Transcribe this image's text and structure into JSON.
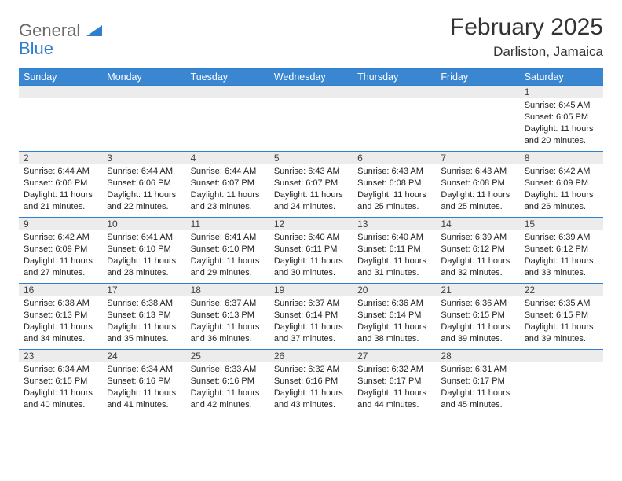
{
  "logo": {
    "word1": "General",
    "word2": "Blue"
  },
  "title": "February 2025",
  "location": "Darliston, Jamaica",
  "colors": {
    "header_bg": "#3a86d0",
    "border": "#2f7fcf",
    "daynum_bg": "#ececec",
    "logo_blue": "#2f7fcf",
    "logo_gray": "#6a6a6a"
  },
  "day_headers": [
    "Sunday",
    "Monday",
    "Tuesday",
    "Wednesday",
    "Thursday",
    "Friday",
    "Saturday"
  ],
  "weeks": [
    [
      null,
      null,
      null,
      null,
      null,
      null,
      {
        "d": "1",
        "sunrise": "6:45 AM",
        "sunset": "6:05 PM",
        "dayh": "11",
        "daym": "20"
      }
    ],
    [
      {
        "d": "2",
        "sunrise": "6:44 AM",
        "sunset": "6:06 PM",
        "dayh": "11",
        "daym": "21"
      },
      {
        "d": "3",
        "sunrise": "6:44 AM",
        "sunset": "6:06 PM",
        "dayh": "11",
        "daym": "22"
      },
      {
        "d": "4",
        "sunrise": "6:44 AM",
        "sunset": "6:07 PM",
        "dayh": "11",
        "daym": "23"
      },
      {
        "d": "5",
        "sunrise": "6:43 AM",
        "sunset": "6:07 PM",
        "dayh": "11",
        "daym": "24"
      },
      {
        "d": "6",
        "sunrise": "6:43 AM",
        "sunset": "6:08 PM",
        "dayh": "11",
        "daym": "25"
      },
      {
        "d": "7",
        "sunrise": "6:43 AM",
        "sunset": "6:08 PM",
        "dayh": "11",
        "daym": "25"
      },
      {
        "d": "8",
        "sunrise": "6:42 AM",
        "sunset": "6:09 PM",
        "dayh": "11",
        "daym": "26"
      }
    ],
    [
      {
        "d": "9",
        "sunrise": "6:42 AM",
        "sunset": "6:09 PM",
        "dayh": "11",
        "daym": "27"
      },
      {
        "d": "10",
        "sunrise": "6:41 AM",
        "sunset": "6:10 PM",
        "dayh": "11",
        "daym": "28"
      },
      {
        "d": "11",
        "sunrise": "6:41 AM",
        "sunset": "6:10 PM",
        "dayh": "11",
        "daym": "29"
      },
      {
        "d": "12",
        "sunrise": "6:40 AM",
        "sunset": "6:11 PM",
        "dayh": "11",
        "daym": "30"
      },
      {
        "d": "13",
        "sunrise": "6:40 AM",
        "sunset": "6:11 PM",
        "dayh": "11",
        "daym": "31"
      },
      {
        "d": "14",
        "sunrise": "6:39 AM",
        "sunset": "6:12 PM",
        "dayh": "11",
        "daym": "32"
      },
      {
        "d": "15",
        "sunrise": "6:39 AM",
        "sunset": "6:12 PM",
        "dayh": "11",
        "daym": "33"
      }
    ],
    [
      {
        "d": "16",
        "sunrise": "6:38 AM",
        "sunset": "6:13 PM",
        "dayh": "11",
        "daym": "34"
      },
      {
        "d": "17",
        "sunrise": "6:38 AM",
        "sunset": "6:13 PM",
        "dayh": "11",
        "daym": "35"
      },
      {
        "d": "18",
        "sunrise": "6:37 AM",
        "sunset": "6:13 PM",
        "dayh": "11",
        "daym": "36"
      },
      {
        "d": "19",
        "sunrise": "6:37 AM",
        "sunset": "6:14 PM",
        "dayh": "11",
        "daym": "37"
      },
      {
        "d": "20",
        "sunrise": "6:36 AM",
        "sunset": "6:14 PM",
        "dayh": "11",
        "daym": "38"
      },
      {
        "d": "21",
        "sunrise": "6:36 AM",
        "sunset": "6:15 PM",
        "dayh": "11",
        "daym": "39"
      },
      {
        "d": "22",
        "sunrise": "6:35 AM",
        "sunset": "6:15 PM",
        "dayh": "11",
        "daym": "39"
      }
    ],
    [
      {
        "d": "23",
        "sunrise": "6:34 AM",
        "sunset": "6:15 PM",
        "dayh": "11",
        "daym": "40"
      },
      {
        "d": "24",
        "sunrise": "6:34 AM",
        "sunset": "6:16 PM",
        "dayh": "11",
        "daym": "41"
      },
      {
        "d": "25",
        "sunrise": "6:33 AM",
        "sunset": "6:16 PM",
        "dayh": "11",
        "daym": "42"
      },
      {
        "d": "26",
        "sunrise": "6:32 AM",
        "sunset": "6:16 PM",
        "dayh": "11",
        "daym": "43"
      },
      {
        "d": "27",
        "sunrise": "6:32 AM",
        "sunset": "6:17 PM",
        "dayh": "11",
        "daym": "44"
      },
      {
        "d": "28",
        "sunrise": "6:31 AM",
        "sunset": "6:17 PM",
        "dayh": "11",
        "daym": "45"
      },
      null
    ]
  ],
  "labels": {
    "sunrise": "Sunrise: ",
    "sunset": "Sunset: ",
    "daylight_a": "Daylight: ",
    "daylight_b": " hours and ",
    "daylight_c": " minutes."
  }
}
